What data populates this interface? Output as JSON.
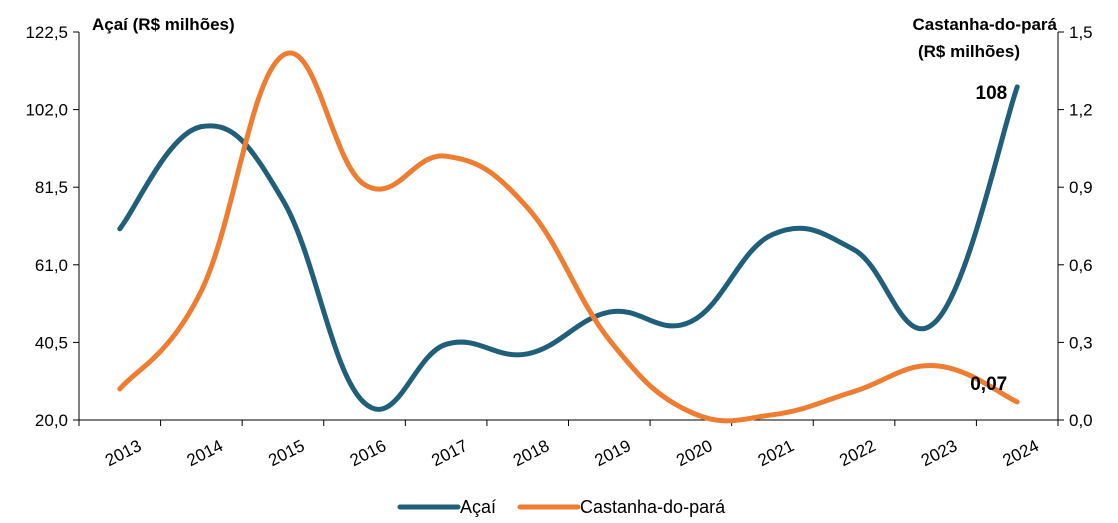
{
  "chart_data": {
    "type": "line",
    "categories": [
      "2013",
      "2014",
      "2015",
      "2016",
      "2017",
      "2018",
      "2019",
      "2020",
      "2021",
      "2022",
      "2023",
      "2024"
    ],
    "left_axis": {
      "title": "Açaí (R$ milhões)",
      "min": 20.0,
      "max": 122.5,
      "ticks": [
        "20,0",
        "40,5",
        "61,0",
        "81,5",
        "102,0",
        "122,5"
      ]
    },
    "right_axis": {
      "title_line1": "Castanha-do-pará",
      "title_line2": "(R$ milhões)",
      "min": 0.0,
      "max": 1.5,
      "ticks": [
        "0,0",
        "0,3",
        "0,6",
        "0,9",
        "1,2",
        "1,5"
      ]
    },
    "series": [
      {
        "name": "Açaí",
        "axis": "left",
        "color": "#1f5f7a",
        "values": [
          70.5,
          97.5,
          78.0,
          24.5,
          40.0,
          37.5,
          48.5,
          46.0,
          69.0,
          65.0,
          46.0,
          108.0
        ]
      },
      {
        "name": "Castanha-do-pará",
        "axis": "right",
        "color": "#ee7d31",
        "values": [
          0.12,
          0.5,
          1.41,
          0.91,
          1.02,
          0.82,
          0.31,
          0.03,
          0.02,
          0.11,
          0.21,
          0.07
        ]
      }
    ],
    "annotations": [
      {
        "series": 0,
        "index": 11,
        "text": "108"
      },
      {
        "series": 1,
        "index": 11,
        "text": "0,07"
      }
    ],
    "grid": false,
    "legend_position": "bottom"
  }
}
